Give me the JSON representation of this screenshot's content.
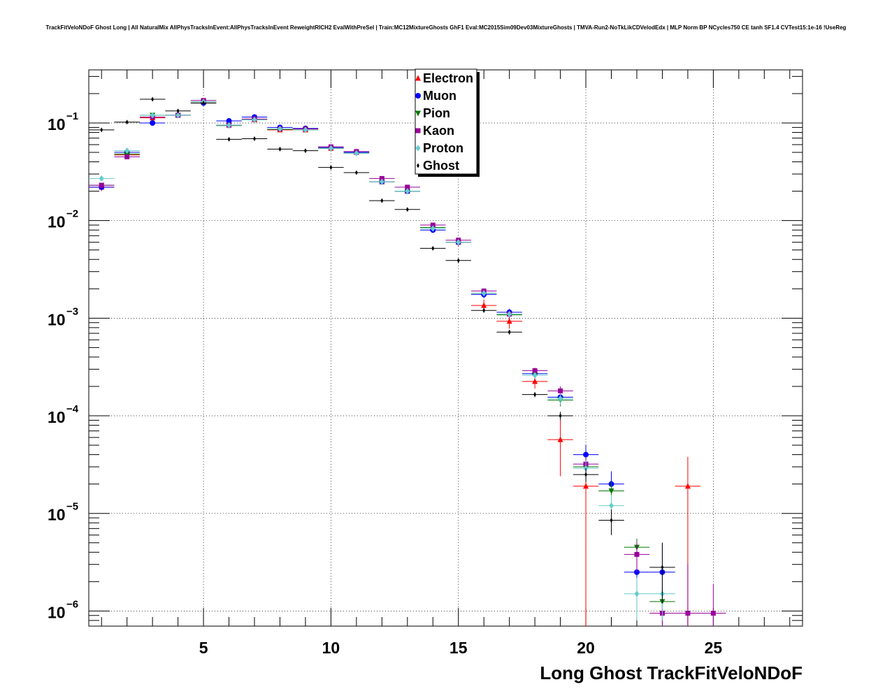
{
  "chart_data": {
    "type": "scatter",
    "title": "TrackFitVeloNDoF Ghost Long | All NaturalMix AllPhysTracksInEvent:AllPhysTracksInEvent ReweightRICH2 EvalWithPreSel | Train:MC12MixtureGhosts GhF1 Eval:MC2015Sim09Dev03MixtureGhosts | TMVA-Run2-NoTkLikCDVelodEdx | MLP Norm BP NCycles750 CE tanh SF1.4 CVTest15:1e-16 !UseReg",
    "xlabel": "Long Ghost TrackFitVeloNDoF",
    "ylabel": "",
    "xlim": [
      0.5,
      28.5
    ],
    "ylim": [
      7e-07,
      0.35
    ],
    "yscale": "log",
    "grid": true,
    "legend_position": "top-center",
    "x_ticks": [
      5,
      10,
      15,
      20,
      25
    ],
    "x_tick_labels": [
      "5",
      "10",
      "15",
      "20",
      "25"
    ],
    "y_ticks": [
      1e-06,
      1e-05,
      0.0001,
      0.001,
      0.01,
      0.1
    ],
    "y_tick_base": "10",
    "y_tick_exponents": [
      "−6",
      "−5",
      "−4",
      "−3",
      "−2",
      "−1"
    ],
    "series": [
      {
        "name": "Electron",
        "color": "#ff0000",
        "marker": "triangle-up",
        "x": [
          1,
          2,
          3,
          4,
          5,
          6,
          7,
          8,
          9,
          10,
          11,
          12,
          13,
          14,
          15,
          16,
          17,
          18,
          19,
          20,
          24
        ],
        "y": [
          0.022,
          0.047,
          0.113,
          0.12,
          0.165,
          0.095,
          0.108,
          0.085,
          0.085,
          0.055,
          0.05,
          0.025,
          0.02,
          0.0085,
          0.006,
          0.00135,
          0.00093,
          0.000225,
          5.7e-05,
          1.9e-05,
          1.9e-05
        ],
        "ylo": [
          0.02,
          0.045,
          0.11,
          0.117,
          0.16,
          0.092,
          0.105,
          0.082,
          0.082,
          0.053,
          0.048,
          0.024,
          0.019,
          0.008,
          0.0055,
          0.00115,
          0.00078,
          0.00019,
          2.4e-05,
          1e-07,
          1e-07
        ],
        "yhi": [
          0.024,
          0.049,
          0.116,
          0.123,
          0.17,
          0.098,
          0.111,
          0.088,
          0.088,
          0.057,
          0.052,
          0.026,
          0.021,
          0.009,
          0.0065,
          0.00155,
          0.00108,
          0.00026,
          9e-05,
          4e-05,
          3.8e-05
        ]
      },
      {
        "name": "Muon",
        "color": "#0000ff",
        "marker": "circle",
        "x": [
          1,
          2,
          3,
          4,
          5,
          6,
          7,
          8,
          9,
          10,
          11,
          12,
          13,
          14,
          15,
          16,
          17,
          18,
          19,
          20,
          21,
          22,
          23
        ],
        "y": [
          0.022,
          0.05,
          0.1,
          0.12,
          0.16,
          0.105,
          0.115,
          0.09,
          0.088,
          0.056,
          0.05,
          0.025,
          0.02,
          0.008,
          0.006,
          0.00175,
          0.00115,
          0.00027,
          0.000155,
          4e-05,
          2e-05,
          2.5e-06,
          2.5e-06
        ],
        "ylo": [
          0.021,
          0.048,
          0.097,
          0.117,
          0.155,
          0.102,
          0.112,
          0.087,
          0.085,
          0.054,
          0.048,
          0.024,
          0.019,
          0.0076,
          0.0056,
          0.0016,
          0.00105,
          0.00024,
          0.00013,
          3e-05,
          1.4e-05,
          8e-07,
          8e-07
        ],
        "yhi": [
          0.023,
          0.052,
          0.103,
          0.123,
          0.165,
          0.108,
          0.118,
          0.093,
          0.091,
          0.058,
          0.052,
          0.026,
          0.021,
          0.0084,
          0.0064,
          0.0019,
          0.00125,
          0.0003,
          0.00018,
          5e-05,
          2.7e-05,
          5e-06,
          5e-06
        ]
      },
      {
        "name": "Pion",
        "color": "#007700",
        "marker": "triangle-down",
        "x": [
          1,
          2,
          3,
          4,
          5,
          6,
          7,
          8,
          9,
          10,
          11,
          12,
          13,
          14,
          15,
          16,
          17,
          18,
          19,
          20,
          21,
          22,
          23
        ],
        "y": [
          0.023,
          0.048,
          0.12,
          0.12,
          0.165,
          0.094,
          0.108,
          0.086,
          0.085,
          0.055,
          0.049,
          0.025,
          0.02,
          0.0085,
          0.006,
          0.0018,
          0.00108,
          0.00026,
          0.000145,
          3e-05,
          1.7e-05,
          4.5e-06,
          1.25e-06
        ],
        "ylo": [
          0.022,
          0.046,
          0.117,
          0.117,
          0.16,
          0.091,
          0.105,
          0.083,
          0.082,
          0.053,
          0.047,
          0.024,
          0.019,
          0.008,
          0.0056,
          0.0017,
          0.001,
          0.00024,
          0.000125,
          2.4e-05,
          1.3e-05,
          3.5e-06,
          8e-07
        ],
        "yhi": [
          0.024,
          0.05,
          0.123,
          0.123,
          0.17,
          0.097,
          0.111,
          0.089,
          0.088,
          0.057,
          0.051,
          0.026,
          0.021,
          0.009,
          0.0064,
          0.0019,
          0.00116,
          0.00028,
          0.000165,
          3.6e-05,
          2.1e-05,
          5.5e-06,
          1.7e-06
        ]
      },
      {
        "name": "Kaon",
        "color": "#990099",
        "marker": "square",
        "x": [
          1,
          2,
          3,
          4,
          5,
          6,
          7,
          8,
          9,
          10,
          11,
          12,
          13,
          14,
          15,
          16,
          17,
          18,
          19,
          20,
          22,
          23,
          24,
          25
        ],
        "y": [
          0.023,
          0.045,
          0.115,
          0.12,
          0.17,
          0.095,
          0.11,
          0.087,
          0.087,
          0.057,
          0.051,
          0.027,
          0.022,
          0.009,
          0.0063,
          0.0019,
          0.0011,
          0.00029,
          0.00018,
          3.2e-05,
          3.8e-06,
          9.5e-07,
          9.5e-07,
          9.5e-07
        ],
        "ylo": [
          0.022,
          0.043,
          0.112,
          0.117,
          0.165,
          0.092,
          0.107,
          0.084,
          0.084,
          0.055,
          0.049,
          0.026,
          0.021,
          0.0086,
          0.006,
          0.0018,
          0.001,
          0.00027,
          0.00016,
          2.6e-05,
          2.5e-06,
          1e-07,
          1e-07,
          1e-07
        ],
        "yhi": [
          0.024,
          0.047,
          0.118,
          0.123,
          0.175,
          0.098,
          0.113,
          0.09,
          0.09,
          0.059,
          0.053,
          0.028,
          0.023,
          0.0094,
          0.0066,
          0.002,
          0.0012,
          0.00031,
          0.0002,
          3.8e-05,
          5.1e-06,
          3e-06,
          3e-06,
          1.9e-06
        ]
      },
      {
        "name": "Proton",
        "color": "#66cccc",
        "marker": "diamond",
        "x": [
          1,
          2,
          3,
          4,
          5,
          6,
          7,
          8,
          9,
          10,
          11,
          12,
          13,
          14,
          15,
          16,
          17,
          18,
          19,
          20,
          21,
          22,
          23
        ],
        "y": [
          0.027,
          0.052,
          0.12,
          0.12,
          0.165,
          0.095,
          0.108,
          0.087,
          0.085,
          0.055,
          0.049,
          0.025,
          0.02,
          0.0083,
          0.006,
          0.0018,
          0.0011,
          0.00026,
          0.00015,
          2.9e-05,
          1.2e-05,
          1.5e-06,
          1.5e-06
        ],
        "ylo": [
          0.026,
          0.05,
          0.117,
          0.117,
          0.16,
          0.092,
          0.105,
          0.084,
          0.082,
          0.053,
          0.047,
          0.024,
          0.019,
          0.008,
          0.0057,
          0.0017,
          0.00102,
          0.00024,
          0.00013,
          2.3e-05,
          8.5e-06,
          8e-07,
          8e-07
        ],
        "yhi": [
          0.028,
          0.054,
          0.123,
          0.123,
          0.17,
          0.098,
          0.111,
          0.09,
          0.088,
          0.057,
          0.051,
          0.026,
          0.021,
          0.0086,
          0.0063,
          0.0019,
          0.00118,
          0.00028,
          0.00017,
          3.5e-05,
          1.55e-05,
          2.2e-06,
          2.2e-06
        ]
      },
      {
        "name": "Ghost",
        "color": "#000000",
        "marker": "diamond-small",
        "x": [
          1,
          2,
          3,
          4,
          5,
          6,
          7,
          8,
          9,
          10,
          11,
          12,
          13,
          14,
          15,
          16,
          17,
          18,
          19,
          20,
          21,
          23
        ],
        "y": [
          0.085,
          0.102,
          0.175,
          0.133,
          0.16,
          0.068,
          0.069,
          0.054,
          0.052,
          0.035,
          0.031,
          0.016,
          0.013,
          0.0052,
          0.0039,
          0.0012,
          0.00072,
          0.000165,
          0.0001,
          2.5e-05,
          8.5e-06,
          2.8e-06
        ],
        "ylo": [
          0.083,
          0.1,
          0.172,
          0.13,
          0.157,
          0.066,
          0.067,
          0.053,
          0.051,
          0.034,
          0.03,
          0.0155,
          0.0126,
          0.005,
          0.0037,
          0.00114,
          0.00068,
          0.000155,
          9e-05,
          2.1e-05,
          6e-06,
          1.2e-06
        ],
        "yhi": [
          0.087,
          0.104,
          0.178,
          0.136,
          0.163,
          0.07,
          0.071,
          0.055,
          0.053,
          0.036,
          0.032,
          0.0165,
          0.0134,
          0.0054,
          0.0041,
          0.00126,
          0.00076,
          0.000175,
          0.00011,
          2.9e-05,
          1.1e-05,
          5e-06
        ]
      }
    ]
  }
}
